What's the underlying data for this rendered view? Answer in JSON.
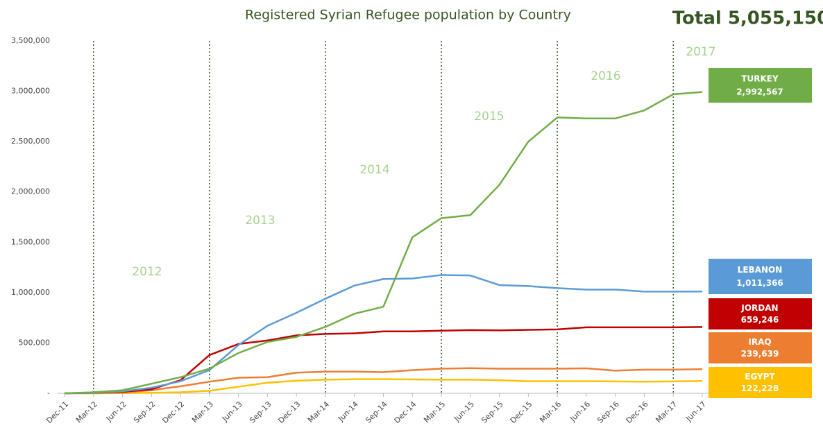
{
  "chart_data": {
    "type": "line",
    "title": "Registered Syrian Refugee population by Country",
    "total_label": "Total 5,055,150",
    "categories": [
      "Dec-11",
      "Mar-12",
      "Jun-12",
      "Sep-12",
      "Dec-12",
      "Mar-13",
      "Jun-13",
      "Sep-13",
      "Dec-13",
      "Mar-14",
      "Jun-14",
      "Sep-14",
      "Dec-14",
      "Mar-15",
      "Jun-15",
      "Sep-15",
      "Dec-15",
      "Mar-16",
      "Jun-16",
      "Sep-16",
      "Dec-16",
      "Mar-17",
      "Jun-17"
    ],
    "annotations": [
      "2012",
      "2013",
      "2014",
      "2015",
      "2016",
      "2017"
    ],
    "series": [
      {
        "name": "TURKEY",
        "color": "#70ad47",
        "values": [
          0,
          10000,
          30000,
          95000,
          160000,
          245000,
          400000,
          510000,
          560000,
          660000,
          790000,
          860000,
          1550000,
          1740000,
          1770000,
          2070000,
          2500000,
          2740000,
          2730000,
          2730000,
          2810000,
          2970000,
          2992567
        ],
        "value_labels": [
          null,
          null,
          null,
          null,
          null,
          null,
          null,
          null,
          null,
          null,
          null,
          null,
          null,
          null,
          null,
          null,
          null,
          null,
          null,
          null,
          null,
          null,
          "2,992,567"
        ]
      },
      {
        "name": "LEBANON",
        "color": "#5b9bd5",
        "values": [
          0,
          5000,
          20000,
          55000,
          120000,
          230000,
          480000,
          670000,
          800000,
          940000,
          1070000,
          1135000,
          1140000,
          1175000,
          1170000,
          1075000,
          1065000,
          1045000,
          1030000,
          1030000,
          1010000,
          1010000,
          1011366
        ],
        "value_labels": [
          null,
          null,
          null,
          null,
          null,
          null,
          null,
          null,
          null,
          null,
          null,
          null,
          null,
          null,
          null,
          null,
          null,
          null,
          null,
          null,
          null,
          null,
          "1,011,366"
        ]
      },
      {
        "name": "JORDAN",
        "color": "#c00000",
        "values": [
          0,
          5000,
          15000,
          40000,
          130000,
          380000,
          490000,
          525000,
          575000,
          590000,
          595000,
          615000,
          615000,
          622000,
          628000,
          625000,
          630000,
          635000,
          655000,
          655000,
          655000,
          655000,
          659246
        ],
        "value_labels": [
          null,
          null,
          null,
          null,
          null,
          null,
          null,
          null,
          null,
          null,
          null,
          null,
          null,
          null,
          null,
          null,
          null,
          null,
          null,
          null,
          null,
          null,
          "659,246"
        ]
      },
      {
        "name": "IRAQ",
        "color": "#ed7d31",
        "values": [
          0,
          2000,
          8000,
          30000,
          70000,
          115000,
          155000,
          160000,
          205000,
          215000,
          215000,
          210000,
          230000,
          245000,
          250000,
          245000,
          245000,
          245000,
          248000,
          225000,
          235000,
          235000,
          239639
        ],
        "value_labels": [
          null,
          null,
          null,
          null,
          null,
          null,
          null,
          null,
          null,
          null,
          null,
          null,
          null,
          null,
          null,
          null,
          null,
          null,
          null,
          null,
          null,
          null,
          "239,639"
        ]
      },
      {
        "name": "EGYPT",
        "color": "#ffc000",
        "values": [
          0,
          0,
          2000,
          5000,
          10000,
          25000,
          65000,
          105000,
          125000,
          135000,
          140000,
          140000,
          138000,
          135000,
          135000,
          130000,
          120000,
          120000,
          120000,
          118000,
          115000,
          118000,
          122228
        ],
        "value_labels": [
          null,
          null,
          null,
          null,
          null,
          null,
          null,
          null,
          null,
          null,
          null,
          null,
          null,
          null,
          null,
          null,
          null,
          null,
          null,
          null,
          null,
          null,
          "122,228"
        ]
      }
    ],
    "ylim": [
      0,
      3500000
    ],
    "yticks": [
      {
        "value": 0,
        "label": "-"
      },
      {
        "value": 500000,
        "label": "500,000"
      },
      {
        "value": 1000000,
        "label": "1,000,000"
      },
      {
        "value": 1500000,
        "label": "1,500,000"
      },
      {
        "value": 2000000,
        "label": "2,000,000"
      },
      {
        "value": 2500000,
        "label": "2,500,000"
      },
      {
        "value": 3000000,
        "label": "3,000,000"
      },
      {
        "value": 3500000,
        "label": "3,500,000"
      }
    ],
    "grid": false
  }
}
